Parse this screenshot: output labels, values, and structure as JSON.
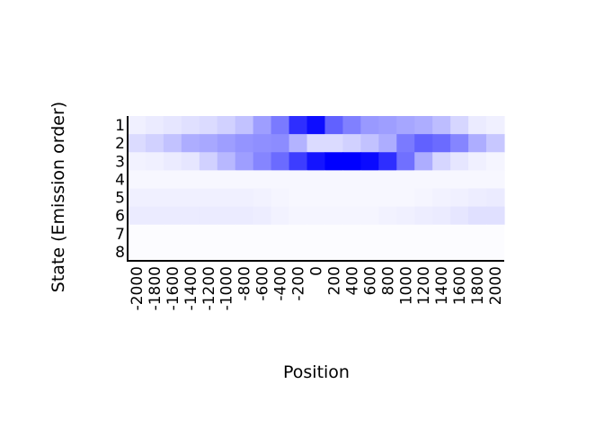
{
  "chart_data": {
    "type": "heatmap",
    "title": "",
    "xlabel": "Position",
    "ylabel": "State (Emission order)",
    "x": [
      "-2000",
      "-1800",
      "-1600",
      "-1400",
      "-1200",
      "-1000",
      "-800",
      "-600",
      "-400",
      "-200",
      "0",
      "200",
      "400",
      "600",
      "800",
      "1000",
      "1200",
      "1400",
      "1600",
      "1800",
      "2000"
    ],
    "y": [
      "1",
      "2",
      "3",
      "4",
      "5",
      "6",
      "7",
      "8"
    ],
    "value_range": [
      0,
      1
    ],
    "color_low": "#ffffff",
    "color_high": "#0000ff",
    "z": [
      [
        0.06,
        0.08,
        0.1,
        0.12,
        0.14,
        0.18,
        0.24,
        0.38,
        0.52,
        0.82,
        0.95,
        0.62,
        0.5,
        0.4,
        0.38,
        0.35,
        0.32,
        0.26,
        0.16,
        0.08,
        0.06
      ],
      [
        0.14,
        0.18,
        0.24,
        0.32,
        0.34,
        0.38,
        0.42,
        0.44,
        0.45,
        0.3,
        0.14,
        0.14,
        0.18,
        0.24,
        0.32,
        0.52,
        0.62,
        0.58,
        0.48,
        0.32,
        0.22
      ],
      [
        0.05,
        0.06,
        0.08,
        0.1,
        0.18,
        0.28,
        0.38,
        0.48,
        0.58,
        0.76,
        0.92,
        1.0,
        1.0,
        0.96,
        0.82,
        0.56,
        0.32,
        0.16,
        0.1,
        0.06,
        0.04
      ],
      [
        0.03,
        0.03,
        0.03,
        0.03,
        0.03,
        0.03,
        0.03,
        0.03,
        0.03,
        0.03,
        0.03,
        0.03,
        0.03,
        0.03,
        0.03,
        0.03,
        0.03,
        0.03,
        0.03,
        0.03,
        0.03
      ],
      [
        0.06,
        0.06,
        0.06,
        0.06,
        0.06,
        0.06,
        0.06,
        0.05,
        0.04,
        0.03,
        0.03,
        0.03,
        0.03,
        0.03,
        0.03,
        0.03,
        0.04,
        0.05,
        0.06,
        0.07,
        0.08
      ],
      [
        0.08,
        0.08,
        0.08,
        0.08,
        0.08,
        0.08,
        0.08,
        0.07,
        0.05,
        0.04,
        0.04,
        0.04,
        0.04,
        0.04,
        0.05,
        0.06,
        0.07,
        0.08,
        0.1,
        0.12,
        0.12
      ],
      [
        0.01,
        0.01,
        0.01,
        0.01,
        0.01,
        0.01,
        0.01,
        0.01,
        0.01,
        0.01,
        0.01,
        0.01,
        0.01,
        0.01,
        0.01,
        0.01,
        0.01,
        0.01,
        0.01,
        0.01,
        0.01
      ],
      [
        0.01,
        0.01,
        0.01,
        0.01,
        0.01,
        0.01,
        0.01,
        0.01,
        0.01,
        0.01,
        0.01,
        0.01,
        0.01,
        0.01,
        0.01,
        0.01,
        0.01,
        0.01,
        0.01,
        0.01,
        0.01
      ]
    ],
    "grid": false,
    "legend": "none"
  }
}
